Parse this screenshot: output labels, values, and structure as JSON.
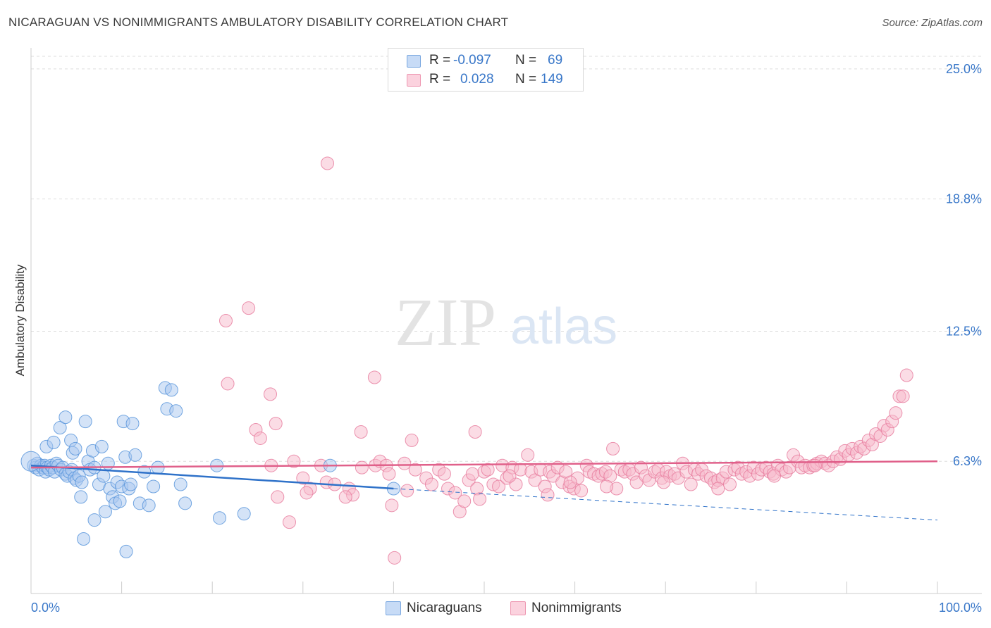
{
  "title": "NICARAGUAN VS NONIMMIGRANTS AMBULATORY DISABILITY CORRELATION CHART",
  "source": "Source: ZipAtlas.com",
  "watermark": {
    "zip": "ZIP",
    "atlas": "atlas"
  },
  "legend": {
    "rows": [
      {
        "r_label": "R =",
        "r_value": "-0.097",
        "n_label": "N =",
        "n_value": "69",
        "color": "#a9c8f0"
      },
      {
        "r_label": "R =",
        "r_value": "0.028",
        "n_label": "N =",
        "n_value": "149",
        "color": "#f7b9cb"
      }
    ]
  },
  "bottom_legend": {
    "series1": "Nicaraguans",
    "series2": "Nonimmigrants"
  },
  "chart_data": {
    "type": "scatter",
    "ylabel": "Ambulatory Disability",
    "xlabel": "",
    "x_tick_labels": {
      "min": "0.0%",
      "max": "100.0%"
    },
    "y_tick_labels": [
      "6.3%",
      "12.5%",
      "18.8%",
      "25.0%"
    ],
    "y_ticks": [
      6.3,
      12.5,
      18.8,
      25.0
    ],
    "xlim": [
      0,
      100
    ],
    "ylim": [
      0,
      25.6
    ],
    "grid": true,
    "series": [
      {
        "name": "Nicaraguans",
        "color": "#5a96dc",
        "fill": "#a9c8f0",
        "trend": {
          "x0": 0,
          "y0": 6.1,
          "x1": 40,
          "y1": 5.0,
          "x_end": 100,
          "y_end": 3.5
        },
        "points": [
          [
            0.3,
            6.1
          ],
          [
            0.5,
            6.0
          ],
          [
            0.7,
            6.2
          ],
          [
            0.9,
            5.9
          ],
          [
            1.1,
            6.1
          ],
          [
            1.3,
            6.0
          ],
          [
            1.5,
            6.1
          ],
          [
            1.6,
            5.8
          ],
          [
            1.8,
            6.0
          ],
          [
            2.0,
            5.9
          ],
          [
            2.2,
            6.1
          ],
          [
            2.4,
            6.0
          ],
          [
            2.6,
            5.8
          ],
          [
            2.8,
            6.2
          ],
          [
            3.0,
            6.1
          ],
          [
            3.3,
            5.9
          ],
          [
            3.5,
            6.0
          ],
          [
            3.8,
            5.7
          ],
          [
            4.0,
            5.6
          ],
          [
            4.2,
            5.8
          ],
          [
            4.5,
            5.9
          ],
          [
            4.8,
            5.5
          ],
          [
            5.0,
            5.4
          ],
          [
            5.3,
            5.6
          ],
          [
            1.7,
            7.0
          ],
          [
            2.5,
            7.2
          ],
          [
            3.2,
            7.9
          ],
          [
            3.8,
            8.4
          ],
          [
            4.4,
            7.3
          ],
          [
            4.6,
            6.7
          ],
          [
            4.9,
            6.9
          ],
          [
            5.6,
            5.3
          ],
          [
            6.0,
            8.2
          ],
          [
            6.3,
            6.3
          ],
          [
            6.5,
            5.9
          ],
          [
            6.8,
            6.8
          ],
          [
            7.0,
            6.0
          ],
          [
            7.5,
            5.2
          ],
          [
            7.8,
            7.0
          ],
          [
            8.0,
            5.6
          ],
          [
            8.5,
            6.2
          ],
          [
            8.7,
            5.0
          ],
          [
            9.0,
            4.6
          ],
          [
            9.3,
            4.3
          ],
          [
            9.5,
            5.3
          ],
          [
            9.8,
            4.4
          ],
          [
            10.0,
            5.1
          ],
          [
            10.4,
            6.5
          ],
          [
            10.8,
            5.0
          ],
          [
            11.0,
            5.2
          ],
          [
            10.2,
            8.2
          ],
          [
            11.2,
            8.1
          ],
          [
            11.5,
            6.6
          ],
          [
            12.0,
            4.3
          ],
          [
            12.5,
            5.8
          ],
          [
            13.0,
            4.2
          ],
          [
            14.0,
            6.0
          ],
          [
            14.8,
            9.8
          ],
          [
            15.0,
            8.8
          ],
          [
            15.5,
            9.7
          ],
          [
            16.0,
            8.7
          ],
          [
            16.5,
            5.2
          ],
          [
            17.0,
            4.3
          ],
          [
            7.0,
            3.5
          ],
          [
            5.5,
            4.6
          ],
          [
            5.8,
            2.6
          ],
          [
            8.2,
            3.9
          ],
          [
            10.5,
            2.0
          ],
          [
            13.5,
            5.1
          ],
          [
            20.8,
            3.6
          ],
          [
            23.5,
            3.8
          ],
          [
            20.5,
            6.1
          ],
          [
            33.0,
            6.1
          ],
          [
            40.0,
            5.0
          ]
        ],
        "big_points": [
          [
            0.0,
            6.3
          ]
        ]
      },
      {
        "name": "Nonimmigrants",
        "color": "#e87fa0",
        "fill": "#f7b9cb",
        "trend": {
          "x0": 0,
          "y0": 6.0,
          "x1": 100,
          "y1": 6.3
        },
        "points": [
          [
            32.7,
            20.5
          ],
          [
            21.5,
            13.0
          ],
          [
            24.0,
            13.6
          ],
          [
            21.7,
            10.0
          ],
          [
            37.9,
            10.3
          ],
          [
            26.4,
            9.5
          ],
          [
            27.0,
            8.1
          ],
          [
            24.8,
            7.8
          ],
          [
            25.3,
            7.4
          ],
          [
            36.4,
            7.7
          ],
          [
            42.0,
            7.3
          ],
          [
            49.0,
            7.7
          ],
          [
            32.0,
            6.1
          ],
          [
            29.0,
            6.3
          ],
          [
            26.5,
            6.1
          ],
          [
            30.0,
            5.5
          ],
          [
            27.2,
            4.6
          ],
          [
            30.8,
            5.0
          ],
          [
            30.4,
            4.8
          ],
          [
            28.5,
            3.4
          ],
          [
            32.6,
            5.3
          ],
          [
            33.5,
            5.2
          ],
          [
            35.1,
            5.0
          ],
          [
            35.5,
            4.7
          ],
          [
            34.7,
            4.6
          ],
          [
            36.5,
            6.0
          ],
          [
            38.0,
            6.1
          ],
          [
            38.5,
            6.3
          ],
          [
            39.2,
            6.1
          ],
          [
            39.5,
            5.7
          ],
          [
            39.8,
            4.2
          ],
          [
            40.1,
            1.7
          ],
          [
            41.2,
            6.2
          ],
          [
            42.4,
            5.9
          ],
          [
            41.5,
            4.9
          ],
          [
            43.6,
            5.5
          ],
          [
            44.2,
            5.2
          ],
          [
            45.0,
            5.9
          ],
          [
            45.6,
            5.7
          ],
          [
            46.0,
            5.0
          ],
          [
            46.8,
            4.8
          ],
          [
            47.3,
            3.9
          ],
          [
            47.8,
            4.4
          ],
          [
            48.3,
            5.4
          ],
          [
            48.7,
            5.7
          ],
          [
            49.2,
            5.0
          ],
          [
            49.5,
            4.5
          ],
          [
            50.0,
            5.8
          ],
          [
            50.4,
            5.9
          ],
          [
            51.0,
            5.2
          ],
          [
            51.6,
            5.1
          ],
          [
            52.0,
            6.1
          ],
          [
            52.5,
            5.5
          ],
          [
            53.1,
            6.0
          ],
          [
            53.5,
            5.2
          ],
          [
            54.0,
            5.9
          ],
          [
            54.8,
            6.6
          ],
          [
            55.2,
            5.8
          ],
          [
            55.6,
            5.4
          ],
          [
            56.2,
            5.9
          ],
          [
            56.7,
            5.1
          ],
          [
            57.2,
            5.8
          ],
          [
            57.6,
            5.6
          ],
          [
            58.1,
            6.0
          ],
          [
            58.6,
            5.3
          ],
          [
            59.0,
            5.8
          ],
          [
            59.4,
            5.1
          ],
          [
            59.9,
            5.0
          ],
          [
            60.3,
            5.5
          ],
          [
            60.7,
            4.9
          ],
          [
            61.3,
            6.1
          ],
          [
            61.6,
            5.8
          ],
          [
            62.1,
            5.7
          ],
          [
            62.6,
            5.6
          ],
          [
            63.0,
            5.7
          ],
          [
            63.4,
            5.8
          ],
          [
            63.9,
            5.6
          ],
          [
            64.2,
            6.9
          ],
          [
            64.6,
            5.0
          ],
          [
            65.1,
            5.9
          ],
          [
            65.5,
            5.8
          ],
          [
            66.0,
            5.9
          ],
          [
            66.4,
            5.7
          ],
          [
            66.8,
            5.3
          ],
          [
            67.3,
            6.0
          ],
          [
            67.8,
            5.6
          ],
          [
            68.2,
            5.4
          ],
          [
            68.8,
            5.8
          ],
          [
            69.2,
            5.9
          ],
          [
            69.6,
            5.5
          ],
          [
            70.1,
            5.8
          ],
          [
            70.5,
            5.6
          ],
          [
            71.0,
            5.7
          ],
          [
            71.4,
            5.5
          ],
          [
            71.9,
            6.2
          ],
          [
            72.3,
            5.8
          ],
          [
            72.8,
            5.2
          ],
          [
            73.2,
            5.9
          ],
          [
            73.6,
            5.7
          ],
          [
            74.0,
            5.9
          ],
          [
            74.5,
            5.6
          ],
          [
            75.0,
            5.5
          ],
          [
            75.4,
            5.3
          ],
          [
            75.8,
            5.4
          ],
          [
            76.3,
            5.5
          ],
          [
            76.7,
            5.8
          ],
          [
            77.1,
            5.2
          ],
          [
            77.6,
            5.9
          ],
          [
            78.0,
            6.0
          ],
          [
            78.4,
            5.7
          ],
          [
            78.9,
            5.8
          ],
          [
            79.3,
            5.6
          ],
          [
            79.7,
            6.0
          ],
          [
            80.2,
            5.7
          ],
          [
            80.6,
            5.9
          ],
          [
            81.1,
            6.0
          ],
          [
            81.5,
            5.8
          ],
          [
            81.9,
            5.7
          ],
          [
            82.4,
            6.1
          ],
          [
            82.8,
            5.9
          ],
          [
            83.3,
            5.8
          ],
          [
            83.7,
            6.0
          ],
          [
            84.1,
            6.6
          ],
          [
            84.6,
            6.3
          ],
          [
            85.0,
            6.0
          ],
          [
            85.4,
            6.1
          ],
          [
            85.9,
            6.0
          ],
          [
            86.3,
            6.1
          ],
          [
            86.7,
            6.2
          ],
          [
            87.2,
            6.3
          ],
          [
            87.6,
            6.2
          ],
          [
            88.0,
            6.1
          ],
          [
            88.5,
            6.3
          ],
          [
            88.9,
            6.5
          ],
          [
            89.3,
            6.4
          ],
          [
            89.8,
            6.8
          ],
          [
            90.2,
            6.6
          ],
          [
            90.6,
            6.9
          ],
          [
            91.1,
            6.7
          ],
          [
            91.5,
            7.0
          ],
          [
            91.9,
            6.9
          ],
          [
            92.4,
            7.3
          ],
          [
            92.8,
            7.1
          ],
          [
            93.2,
            7.6
          ],
          [
            93.7,
            7.5
          ],
          [
            94.1,
            8.0
          ],
          [
            94.5,
            7.8
          ],
          [
            95.0,
            8.2
          ],
          [
            95.4,
            8.6
          ],
          [
            95.8,
            9.4
          ],
          [
            96.2,
            9.4
          ],
          [
            96.6,
            10.4
          ],
          [
            59.5,
            5.3
          ],
          [
            52.8,
            5.6
          ],
          [
            57.0,
            4.7
          ],
          [
            63.5,
            5.1
          ],
          [
            69.8,
            5.3
          ],
          [
            75.8,
            5.0
          ],
          [
            82.0,
            5.6
          ],
          [
            86.5,
            6.1
          ]
        ],
        "big_points": []
      }
    ]
  }
}
